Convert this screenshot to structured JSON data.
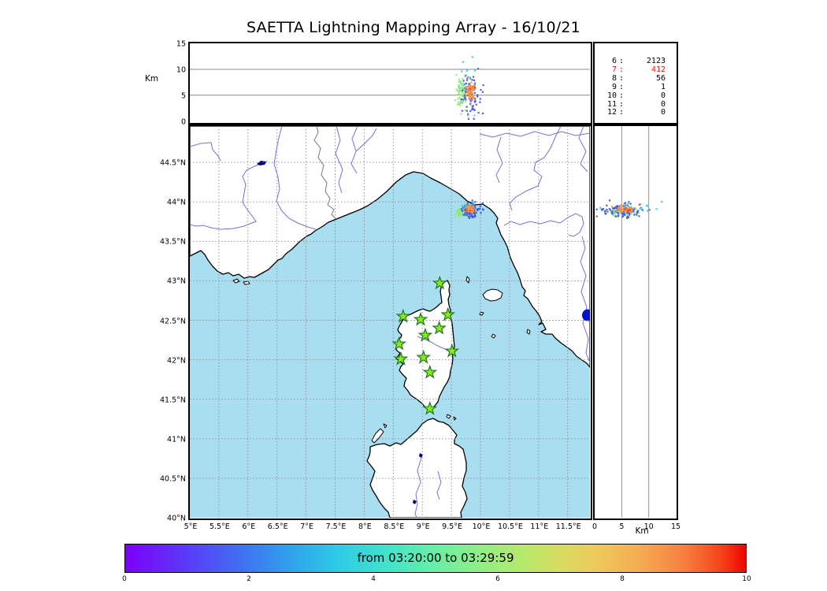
{
  "title": "SAETTA Lightning Mapping Array - 16/10/21",
  "labels": {
    "km_top": "Km",
    "km_right": "Km"
  },
  "axes": {
    "alt_ticks": [
      "0",
      "5",
      "10",
      "15"
    ],
    "alt_tick_values": [
      0,
      5,
      10,
      15
    ],
    "alt_gridlines_km": [
      5,
      10
    ],
    "lat_tick_labels": [
      "40°N",
      "40.5°N",
      "41°N",
      "41.5°N",
      "42°N",
      "42.5°N",
      "43°N",
      "43.5°N",
      "44°N",
      "44.5°N"
    ],
    "lat_tick_values": [
      40,
      40.5,
      41,
      41.5,
      42,
      42.5,
      43,
      43.5,
      44,
      44.5
    ],
    "lon_tick_labels": [
      "5°E",
      "5.5°E",
      "6°E",
      "6.5°E",
      "7°E",
      "7.5°E",
      "8°E",
      "8.5°E",
      "9°E",
      "9.5°E",
      "10°E",
      "10.5°E",
      "11°E",
      "11.5°E"
    ],
    "lon_tick_values": [
      5,
      5.5,
      6,
      6.5,
      7,
      7.5,
      8,
      8.5,
      9,
      9.5,
      10,
      10.5,
      11,
      11.5
    ]
  },
  "stats": {
    "rows": [
      {
        "hour": "6",
        "count": "2123"
      },
      {
        "hour": "7",
        "count": "412"
      },
      {
        "hour": "8",
        "count": "56"
      },
      {
        "hour": "9",
        "count": "1"
      },
      {
        "hour": "10",
        "count": "0"
      },
      {
        "hour": "11",
        "count": "0"
      },
      {
        "hour": "12",
        "count": "0"
      }
    ],
    "highlight_index": 1,
    "highlight_color": "#ee1111"
  },
  "colorbar": {
    "label": "from 03:20:00 to 03:29:59",
    "tick_labels": [
      "0",
      "2",
      "4",
      "6",
      "8",
      "10"
    ],
    "tick_values": [
      0,
      2,
      4,
      6,
      8,
      10
    ],
    "range": [
      0,
      10
    ]
  },
  "colors": {
    "sea": "#a9def1",
    "land": "#ffffff",
    "coast": "#000000",
    "river": "#6a6ade",
    "border_line": "#777777",
    "grid": "#8a8a8a",
    "lake": "#000080",
    "lake_round": "#0011d0",
    "station_fill": "#8ce81c",
    "station_edge": "#1c7a1c"
  },
  "chart_data": {
    "type": "scatter",
    "title": "SAETTA Lightning Mapping Array - 16/10/21",
    "views": [
      "plan lon-lat map",
      "altitude-vs-longitude (top)",
      "altitude-vs-latitude (right)"
    ],
    "map_extent": {
      "lon_deg_E": [
        5.0,
        11.88
      ],
      "lat_deg_N": [
        40.0,
        44.96
      ]
    },
    "altitude_axis_km": [
      0,
      15
    ],
    "altitude_gridlines_km": [
      5,
      10
    ],
    "time_window": {
      "from": "03:20:00",
      "to": "03:29:59"
    },
    "colorbar": {
      "units": "minutes",
      "range": [
        0,
        10
      ],
      "colormap": "rainbow"
    },
    "hourly_flash_counts": [
      [
        "6",
        2123
      ],
      [
        "7",
        412
      ],
      [
        "8",
        56
      ],
      [
        "9",
        1
      ],
      [
        "10",
        0
      ],
      [
        "11",
        0
      ],
      [
        "12",
        0
      ]
    ],
    "highlighted_hour": "7",
    "stations_lonlat": [
      [
        9.3,
        42.97
      ],
      [
        8.67,
        42.55
      ],
      [
        8.97,
        42.51
      ],
      [
        9.44,
        42.57
      ],
      [
        9.29,
        42.4
      ],
      [
        9.05,
        42.31
      ],
      [
        8.6,
        42.2
      ],
      [
        9.51,
        42.11
      ],
      [
        8.63,
        42.01
      ],
      [
        9.02,
        42.03
      ],
      [
        9.13,
        41.84
      ],
      [
        9.13,
        41.38
      ]
    ],
    "flash_clusters": [
      {
        "label": "green",
        "color": "#8de87e",
        "n": 70,
        "lon_mu": 9.67,
        "lon_sd": 0.045,
        "lat_mu": 43.875,
        "lat_sd": 0.022,
        "alt_mu_km": 5.2,
        "alt_sd_km": 1.6
      },
      {
        "label": "blue",
        "color": "#3e55e8",
        "n": 85,
        "lon_mu": 9.84,
        "lon_sd": 0.09,
        "lat_mu": 43.89,
        "lat_sd": 0.04,
        "alt_mu_km": 4.8,
        "alt_sd_km": 2.3
      },
      {
        "label": "cyan",
        "color": "#3ecbe8",
        "n": 22,
        "lon_mu": 9.79,
        "lon_sd": 0.06,
        "lat_mu": 43.93,
        "lat_sd": 0.03,
        "alt_mu_km": 6.8,
        "alt_sd_km": 2.0
      },
      {
        "label": "orange",
        "color": "#f59040",
        "n": 60,
        "lon_mu": 9.82,
        "lon_sd": 0.035,
        "lat_mu": 43.905,
        "lat_sd": 0.018,
        "alt_mu_km": 5.9,
        "alt_sd_km": 0.9
      },
      {
        "label": "red",
        "color": "#e8402c",
        "n": 5,
        "lon_mu": 9.8,
        "lon_sd": 0.04,
        "lat_mu": 43.9,
        "lat_sd": 0.02,
        "alt_mu_km": 5.5,
        "alt_sd_km": 1.5
      }
    ]
  }
}
